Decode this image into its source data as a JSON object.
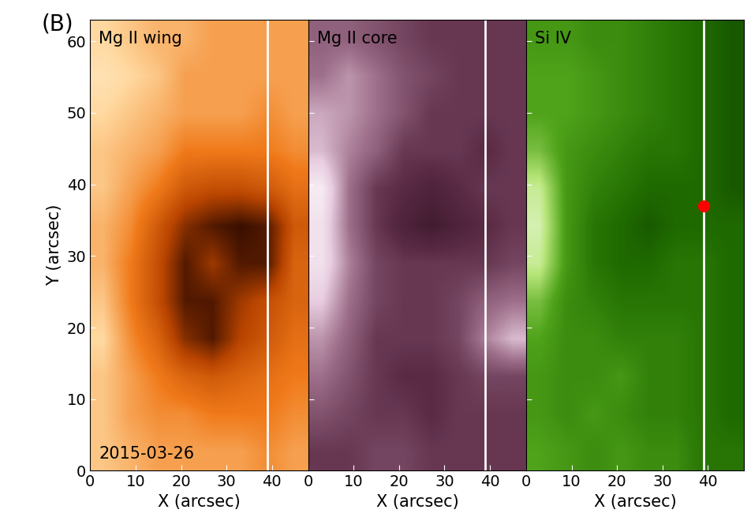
{
  "panel_label": "(B)",
  "chart_data": [
    {
      "type": "heatmap",
      "title": "Mg II wing",
      "xlabel": "X (arcsec)",
      "ylabel": "Y (arcsec)",
      "annotations": [
        "2015-03-26"
      ],
      "xlim": [
        0,
        48
      ],
      "ylim": [
        0,
        63
      ],
      "xticks": [
        0,
        10,
        20,
        30,
        40
      ],
      "yticks": [
        0,
        10,
        20,
        30,
        40,
        50,
        60
      ],
      "zlim": [
        0,
        1
      ],
      "slit_x": 39,
      "cells": [
        [
          0.7,
          0.65,
          0.6,
          0.6,
          0.6,
          0.6,
          0.55,
          0.6
        ],
        [
          0.7,
          0.6,
          0.55,
          0.55,
          0.5,
          0.5,
          0.5,
          0.55
        ],
        [
          0.7,
          0.6,
          0.5,
          0.4,
          0.35,
          0.4,
          0.45,
          0.5
        ],
        [
          0.75,
          0.55,
          0.4,
          0.15,
          0.05,
          0.25,
          0.35,
          0.45
        ],
        [
          0.7,
          0.5,
          0.3,
          0.05,
          0.05,
          0.2,
          0.3,
          0.4
        ],
        [
          0.65,
          0.5,
          0.3,
          0.05,
          0.2,
          0.05,
          0.05,
          0.4
        ],
        [
          0.65,
          0.55,
          0.35,
          0.15,
          0.05,
          0.0,
          0.05,
          0.35
        ],
        [
          0.7,
          0.6,
          0.5,
          0.35,
          0.3,
          0.3,
          0.35,
          0.45
        ],
        [
          0.7,
          0.65,
          0.6,
          0.5,
          0.5,
          0.5,
          0.5,
          0.55
        ],
        [
          0.75,
          0.7,
          0.65,
          0.6,
          0.6,
          0.6,
          0.55,
          0.6
        ],
        [
          0.8,
          0.75,
          0.7,
          0.6,
          0.6,
          0.6,
          0.6,
          0.6
        ],
        [
          0.75,
          0.7,
          0.65,
          0.65,
          0.6,
          0.6,
          0.6,
          0.6
        ]
      ]
    },
    {
      "type": "heatmap",
      "title": "Mg II core",
      "xlabel": "X (arcsec)",
      "tick_labels": "x",
      "xlim": [
        0,
        48
      ],
      "ylim": [
        0,
        63
      ],
      "xticks": [
        0,
        10,
        20,
        30,
        40
      ],
      "yticks": [
        0,
        10,
        20,
        30,
        40,
        50,
        60
      ],
      "zlim": [
        0,
        1
      ],
      "slit_x": 39,
      "cells": [
        [
          0.3,
          0.3,
          0.35,
          0.35,
          0.3,
          0.3,
          0.3,
          0.3
        ],
        [
          0.4,
          0.35,
          0.3,
          0.3,
          0.25,
          0.3,
          0.3,
          0.3
        ],
        [
          0.5,
          0.4,
          0.3,
          0.25,
          0.25,
          0.3,
          0.35,
          0.35
        ],
        [
          0.6,
          0.45,
          0.3,
          0.3,
          0.3,
          0.35,
          0.55,
          0.7
        ],
        [
          0.75,
          0.5,
          0.35,
          0.3,
          0.3,
          0.35,
          0.45,
          0.5
        ],
        [
          0.85,
          0.55,
          0.35,
          0.3,
          0.3,
          0.3,
          0.3,
          0.35
        ],
        [
          0.85,
          0.5,
          0.3,
          0.2,
          0.15,
          0.2,
          0.25,
          0.3
        ],
        [
          0.9,
          0.5,
          0.3,
          0.25,
          0.2,
          0.25,
          0.3,
          0.3
        ],
        [
          0.7,
          0.55,
          0.45,
          0.3,
          0.3,
          0.3,
          0.25,
          0.3
        ],
        [
          0.65,
          0.6,
          0.5,
          0.4,
          0.3,
          0.3,
          0.3,
          0.3
        ],
        [
          0.5,
          0.6,
          0.5,
          0.4,
          0.35,
          0.3,
          0.3,
          0.3
        ],
        [
          0.45,
          0.45,
          0.4,
          0.35,
          0.3,
          0.3,
          0.3,
          0.3
        ]
      ]
    },
    {
      "type": "heatmap",
      "title": "Si IV",
      "xlabel": "X (arcsec)",
      "tick_labels": "x",
      "xlim": [
        0,
        48
      ],
      "ylim": [
        0,
        63
      ],
      "xticks": [
        0,
        10,
        20,
        30,
        40
      ],
      "yticks": [
        0,
        10,
        20,
        30,
        40,
        50,
        60
      ],
      "zlim": [
        0,
        1
      ],
      "slit_x": 39,
      "point": {
        "x": 39,
        "y": 37
      },
      "cells": [
        [
          0.5,
          0.45,
          0.4,
          0.45,
          0.4,
          0.4,
          0.3,
          0.3
        ],
        [
          0.45,
          0.4,
          0.45,
          0.4,
          0.35,
          0.35,
          0.3,
          0.25
        ],
        [
          0.45,
          0.4,
          0.4,
          0.45,
          0.35,
          0.35,
          0.3,
          0.25
        ],
        [
          0.5,
          0.4,
          0.4,
          0.35,
          0.35,
          0.35,
          0.3,
          0.25
        ],
        [
          0.6,
          0.4,
          0.35,
          0.3,
          0.3,
          0.3,
          0.3,
          0.25
        ],
        [
          0.8,
          0.45,
          0.3,
          0.25,
          0.25,
          0.3,
          0.3,
          0.25
        ],
        [
          0.85,
          0.45,
          0.3,
          0.25,
          0.2,
          0.25,
          0.25,
          0.25
        ],
        [
          0.8,
          0.45,
          0.35,
          0.3,
          0.25,
          0.25,
          0.25,
          0.2
        ],
        [
          0.6,
          0.45,
          0.4,
          0.35,
          0.3,
          0.3,
          0.25,
          0.2
        ],
        [
          0.5,
          0.5,
          0.45,
          0.4,
          0.35,
          0.3,
          0.25,
          0.2
        ],
        [
          0.5,
          0.5,
          0.45,
          0.4,
          0.35,
          0.3,
          0.25,
          0.2
        ],
        [
          0.45,
          0.45,
          0.4,
          0.4,
          0.35,
          0.3,
          0.25,
          0.2
        ]
      ]
    }
  ]
}
